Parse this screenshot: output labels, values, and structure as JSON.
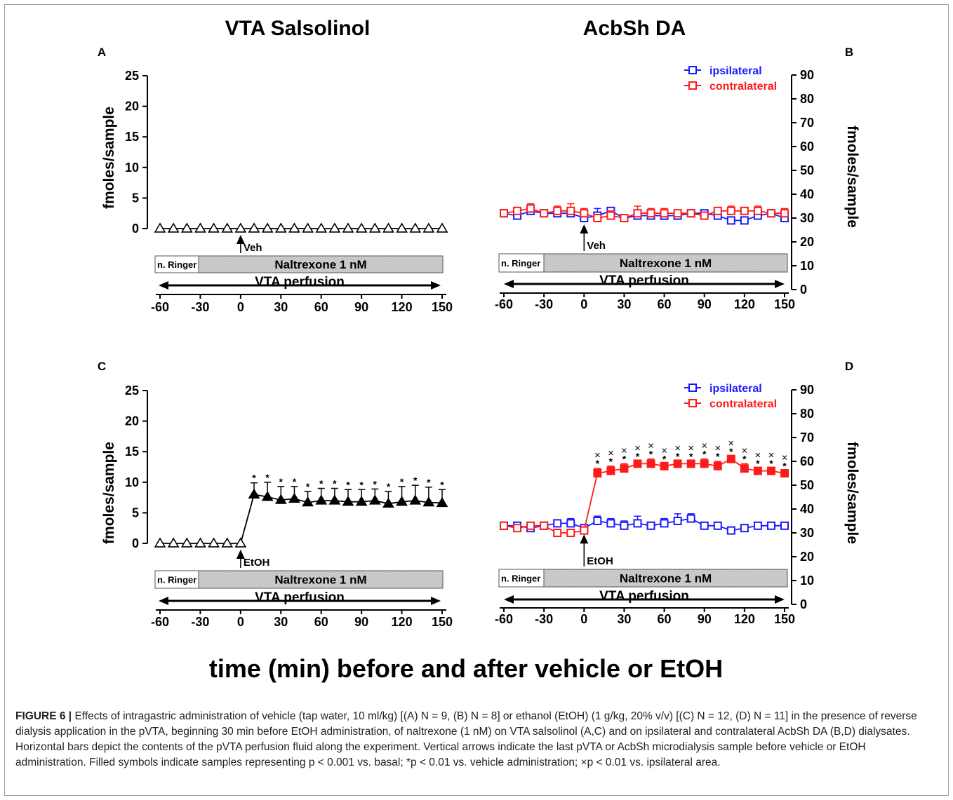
{
  "column_titles": {
    "left": "VTA Salsolinol",
    "right": "AcbSh DA"
  },
  "overall_xlabel": "time (min) before and after vehicle or EtOH",
  "caption": {
    "label": "FIGURE 6 |",
    "text": "Effects of intragastric administration of vehicle (tap water, 10 ml/kg) [(A) N = 9, (B) N = 8] or ethanol (EtOH) (1 g/kg, 20% v/v) [(C) N = 12, (D) N = 11] in the presence of reverse dialysis application in the pVTA, beginning 30 min before EtOH administration, of naltrexone (1 nM) on VTA salsolinol (A,C) and on ipsilateral and contralateral AcbSh DA (B,D) dialysates. Horizontal bars depict the contents of the pVTA perfusion fluid along the experiment. Vertical arrows indicate the last pVTA or AcbSh microdialysis sample before vehicle or EtOH administration. Filled symbols indicate samples representing p < 0.001 vs. basal; *p < 0.01 vs. vehicle administration; ×p < 0.01 vs. ipsilateral area."
  },
  "colors": {
    "ipsilateral": "#1a1aff",
    "contralateral": "#ff1a1a",
    "black": "#000000",
    "bar_fill": "#d4d4d4"
  },
  "chart_data": [
    {
      "panel": "A",
      "type": "line",
      "ylabel": "fmoles/sample",
      "ylim": [
        0,
        25
      ],
      "yticks": [
        "0",
        "5",
        "10",
        "15",
        "20",
        "25"
      ],
      "xticks": [
        "-60",
        "-30",
        "0",
        "30",
        "60",
        "90",
        "120",
        "150"
      ],
      "xlim": [
        -60,
        150
      ],
      "bar_labels": {
        "ringer": "n. Ringer",
        "drug": "Naltrexone 1 nM",
        "perfusion": "VTA perfusion"
      },
      "arrow_label": "Veh",
      "series": [
        {
          "color": "#000000",
          "x": [
            -60,
            -50,
            -40,
            -30,
            -20,
            -10,
            0,
            10,
            20,
            30,
            40,
            50,
            60,
            70,
            80,
            90,
            100,
            110,
            120,
            130,
            140,
            150
          ],
          "y": [
            0,
            0,
            0,
            0,
            0,
            0,
            0,
            0,
            0,
            0,
            0,
            0,
            0,
            0,
            0,
            0,
            0,
            0,
            0,
            0,
            0,
            0
          ]
        }
      ]
    },
    {
      "panel": "B",
      "type": "line",
      "ylabel": "fmoles/sample",
      "ylim": [
        0,
        90
      ],
      "yticks": [
        "0",
        "10",
        "20",
        "30",
        "40",
        "50",
        "60",
        "70",
        "80",
        "90"
      ],
      "xticks": [
        "-60",
        "-30",
        "0",
        "30",
        "60",
        "90",
        "120",
        "150"
      ],
      "xlim": [
        -60,
        150
      ],
      "bar_labels": {
        "ringer": "n. Ringer",
        "drug": "Naltrexone 1 nM",
        "perfusion": "VTA perfusion"
      },
      "arrow_label": "Veh",
      "legend": [
        "ipsilateral",
        "contralateral"
      ],
      "series": [
        {
          "name": "ipsilateral",
          "color": "#1a1aff",
          "x": [
            -60,
            -50,
            -40,
            -30,
            -20,
            -10,
            0,
            10,
            20,
            30,
            40,
            50,
            60,
            70,
            80,
            90,
            100,
            110,
            120,
            130,
            140,
            150
          ],
          "y": [
            32,
            31,
            33,
            32,
            32,
            32,
            30,
            31,
            33,
            30,
            31,
            31,
            31,
            31,
            32,
            32,
            31,
            29,
            29,
            31,
            32,
            30
          ],
          "err": [
            1,
            1,
            1,
            1,
            1,
            1,
            1,
            3,
            1,
            1,
            1,
            1,
            1,
            1,
            1,
            1,
            1,
            1,
            1,
            1,
            1,
            1
          ]
        },
        {
          "name": "contralateral",
          "color": "#ff1a1a",
          "x": [
            -60,
            -50,
            -40,
            -30,
            -20,
            -10,
            0,
            10,
            20,
            30,
            40,
            50,
            60,
            70,
            80,
            90,
            100,
            110,
            120,
            130,
            140,
            150
          ],
          "y": [
            32,
            33,
            34,
            32,
            33,
            33,
            32,
            30,
            31,
            30,
            32,
            32,
            32,
            32,
            32,
            31,
            33,
            33,
            33,
            33,
            32,
            32
          ],
          "err": [
            1,
            1,
            2,
            1,
            2,
            3,
            2,
            1,
            2,
            1,
            3,
            2,
            2,
            1,
            1,
            1,
            1,
            2,
            1,
            2,
            1,
            2
          ]
        }
      ]
    },
    {
      "panel": "C",
      "type": "line",
      "ylabel": "fmoles/sample",
      "ylim": [
        0,
        25
      ],
      "yticks": [
        "0",
        "5",
        "10",
        "15",
        "20",
        "25"
      ],
      "xticks": [
        "-60",
        "-30",
        "0",
        "30",
        "60",
        "90",
        "120",
        "150"
      ],
      "xlim": [
        -60,
        150
      ],
      "bar_labels": {
        "ringer": "n. Ringer",
        "drug": "Naltrexone 1 nM",
        "perfusion": "VTA perfusion"
      },
      "arrow_label": "EtOH",
      "series": [
        {
          "color": "#000000",
          "x": [
            -60,
            -50,
            -40,
            -30,
            -20,
            -10,
            0,
            10,
            20,
            30,
            40,
            50,
            60,
            70,
            80,
            90,
            100,
            110,
            120,
            130,
            140,
            150
          ],
          "y": [
            0,
            0,
            0,
            0,
            0,
            0,
            0,
            8,
            7.6,
            7.1,
            7.3,
            6.7,
            7.0,
            7.0,
            6.8,
            6.8,
            7.0,
            6.5,
            6.8,
            7.0,
            6.7,
            6.6
          ],
          "err": [
            0,
            0,
            0,
            0,
            0,
            0,
            0,
            1.9,
            2.4,
            2.2,
            2.0,
            1.8,
            2.0,
            2.0,
            2.0,
            2.0,
            1.9,
            2.0,
            2.5,
            2.5,
            2.5,
            2.2
          ],
          "filled": [
            false,
            false,
            false,
            false,
            false,
            false,
            false,
            true,
            true,
            true,
            true,
            true,
            true,
            true,
            true,
            true,
            true,
            true,
            true,
            true,
            true,
            true
          ],
          "stars": [
            false,
            false,
            false,
            false,
            false,
            false,
            false,
            true,
            true,
            true,
            true,
            true,
            true,
            true,
            true,
            true,
            true,
            true,
            true,
            true,
            true,
            true
          ]
        }
      ]
    },
    {
      "panel": "D",
      "type": "line",
      "ylabel": "fmoles/sample",
      "ylim": [
        0,
        90
      ],
      "yticks": [
        "0",
        "10",
        "20",
        "30",
        "40",
        "50",
        "60",
        "70",
        "80",
        "90"
      ],
      "xticks": [
        "-60",
        "-30",
        "0",
        "30",
        "60",
        "90",
        "120",
        "150"
      ],
      "xlim": [
        -60,
        150
      ],
      "bar_labels": {
        "ringer": "n. Ringer",
        "drug": "Naltrexone 1 nM",
        "perfusion": "VTA perfusion"
      },
      "arrow_label": "EtOH",
      "legend": [
        "ipsilateral",
        "contralateral"
      ],
      "series": [
        {
          "name": "ipsilateral",
          "color": "#1a1aff",
          "x": [
            -60,
            -50,
            -40,
            -30,
            -20,
            -10,
            0,
            10,
            20,
            30,
            40,
            50,
            60,
            70,
            80,
            90,
            100,
            110,
            120,
            130,
            140,
            150
          ],
          "y": [
            33,
            33,
            32,
            33,
            34,
            34,
            32,
            35,
            34,
            33,
            34,
            33,
            34,
            35,
            36,
            33,
            33,
            31,
            32,
            33,
            33,
            33
          ],
          "err": [
            1,
            1,
            1,
            1,
            1,
            2,
            1,
            2,
            2,
            2,
            3,
            1,
            2,
            3,
            2,
            1,
            1,
            1,
            1,
            1,
            1,
            1
          ]
        },
        {
          "name": "contralateral",
          "color": "#ff1a1a",
          "x": [
            -60,
            -50,
            -40,
            -30,
            -20,
            -10,
            0,
            10,
            20,
            30,
            40,
            50,
            60,
            70,
            80,
            90,
            100,
            110,
            120,
            130,
            140,
            150
          ],
          "y": [
            33,
            32,
            33,
            33,
            30,
            30,
            31,
            55,
            56,
            57,
            59,
            59,
            58,
            59,
            59,
            59,
            58,
            61,
            57,
            56,
            56,
            55
          ],
          "err": [
            1,
            1,
            1,
            1,
            1,
            1,
            1,
            2,
            2,
            2,
            1,
            2,
            1,
            1,
            1,
            2,
            2,
            1,
            2,
            1,
            1,
            1
          ],
          "filled": [
            false,
            false,
            false,
            false,
            false,
            false,
            false,
            true,
            true,
            true,
            true,
            true,
            true,
            true,
            true,
            true,
            true,
            true,
            true,
            true,
            true,
            true
          ],
          "stars": [
            false,
            false,
            false,
            false,
            false,
            false,
            false,
            true,
            true,
            true,
            true,
            true,
            true,
            true,
            true,
            true,
            true,
            true,
            true,
            true,
            true,
            true
          ],
          "crosses": [
            false,
            false,
            false,
            false,
            false,
            false,
            false,
            true,
            true,
            true,
            true,
            true,
            true,
            true,
            true,
            true,
            true,
            true,
            true,
            true,
            true,
            true
          ]
        }
      ]
    }
  ]
}
